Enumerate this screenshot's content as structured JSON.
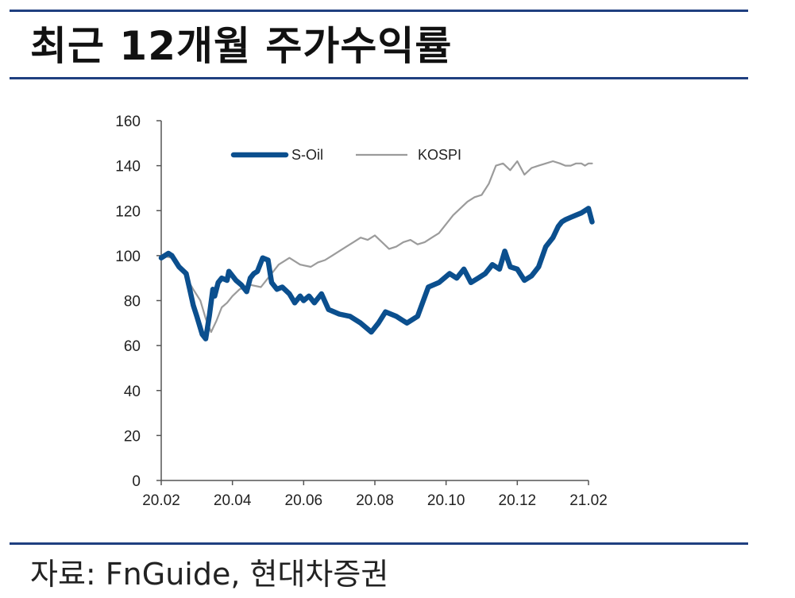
{
  "title": "최근 12개월 주가수익률",
  "source": "자료: FnGuide, 현대차증권",
  "colors": {
    "rule": "#1f3f80",
    "soil": "#0b4f8e",
    "kospi": "#9b9b9b",
    "axis": "#555555"
  },
  "chart_data": {
    "type": "line",
    "title": "",
    "xlabel": "",
    "ylabel": "",
    "ylim": [
      0,
      160
    ],
    "yticks": [
      0,
      20,
      40,
      60,
      80,
      100,
      120,
      140,
      160
    ],
    "xticks": [
      "20.02",
      "20.04",
      "20.06",
      "20.08",
      "20.10",
      "20.12",
      "21.02"
    ],
    "x_months": [
      0,
      2,
      4,
      6,
      8,
      10,
      12
    ],
    "grid": false,
    "legend": "top",
    "series": [
      {
        "name": "S-Oil",
        "x": [
          0,
          0.2,
          0.3,
          0.5,
          0.7,
          0.8,
          0.9,
          1.0,
          1.15,
          1.25,
          1.35,
          1.45,
          1.5,
          1.6,
          1.7,
          1.85,
          1.9,
          2.0,
          2.1,
          2.25,
          2.4,
          2.5,
          2.6,
          2.7,
          2.85,
          3.0,
          3.1,
          3.25,
          3.4,
          3.6,
          3.75,
          3.9,
          4.0,
          4.15,
          4.3,
          4.5,
          4.7,
          5.0,
          5.3,
          5.6,
          5.9,
          6.1,
          6.3,
          6.6,
          6.9,
          7.2,
          7.5,
          7.8,
          8.1,
          8.3,
          8.5,
          8.7,
          8.9,
          9.1,
          9.3,
          9.5,
          9.65,
          9.8,
          10.0,
          10.2,
          10.4,
          10.6,
          10.8,
          11.0,
          11.15,
          11.25,
          11.35,
          11.5,
          11.65,
          11.8,
          11.9,
          12.0,
          12.1
        ],
        "values": [
          99,
          101,
          100,
          95,
          92,
          85,
          78,
          73,
          65,
          63,
          73,
          85,
          82,
          88,
          90,
          89,
          93,
          91,
          89,
          87,
          84,
          90,
          92,
          93,
          99,
          98,
          88,
          85,
          86,
          83,
          79,
          82,
          80,
          82,
          79,
          83,
          76,
          74,
          73,
          70,
          66,
          70,
          75,
          73,
          70,
          73,
          86,
          88,
          92,
          90,
          94,
          88,
          90,
          92,
          96,
          94,
          102,
          95,
          94,
          89,
          91,
          95,
          104,
          108,
          113,
          115,
          116,
          117,
          118,
          119,
          120,
          121,
          115
        ]
      },
      {
        "name": "KOSPI",
        "x": [
          0,
          0.3,
          0.6,
          0.9,
          1.1,
          1.25,
          1.4,
          1.55,
          1.7,
          1.85,
          2.0,
          2.2,
          2.5,
          2.8,
          3.0,
          3.3,
          3.6,
          3.9,
          4.2,
          4.4,
          4.6,
          4.8,
          5.0,
          5.2,
          5.4,
          5.6,
          5.8,
          6.0,
          6.2,
          6.4,
          6.6,
          6.8,
          7.0,
          7.2,
          7.4,
          7.6,
          7.8,
          8.0,
          8.2,
          8.4,
          8.6,
          8.8,
          9.0,
          9.2,
          9.4,
          9.6,
          9.8,
          10.0,
          10.2,
          10.4,
          10.6,
          10.8,
          11.0,
          11.2,
          11.35,
          11.5,
          11.65,
          11.8,
          11.9,
          12.0,
          12.1
        ],
        "values": [
          100,
          99,
          93,
          85,
          80,
          72,
          66,
          71,
          77,
          79,
          82,
          85,
          87,
          86,
          90,
          96,
          99,
          96,
          95,
          97,
          98,
          100,
          102,
          104,
          106,
          108,
          107,
          109,
          106,
          103,
          104,
          106,
          107,
          105,
          106,
          108,
          110,
          114,
          118,
          121,
          124,
          126,
          127,
          132,
          140,
          141,
          138,
          142,
          136,
          139,
          140,
          141,
          142,
          141,
          140,
          140,
          141,
          141,
          140,
          141,
          141
        ]
      }
    ]
  }
}
